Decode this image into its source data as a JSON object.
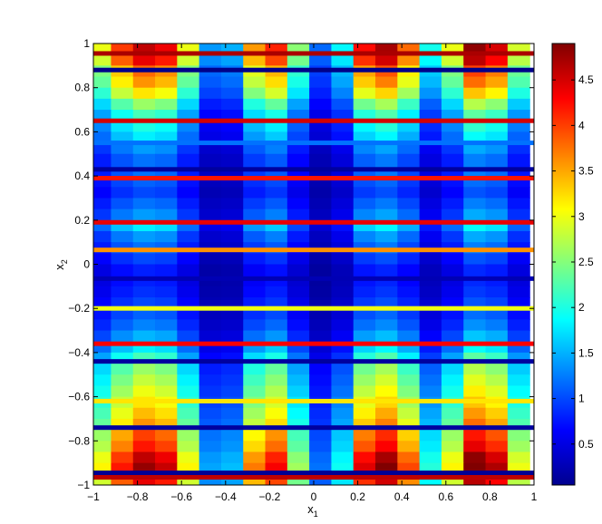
{
  "chart_data": {
    "type": "heatmap",
    "title": "",
    "xlabel": "x",
    "xlabel_sub": "1",
    "ylabel": "x",
    "ylabel_sub": "2",
    "xlim": [
      -1,
      1
    ],
    "ylim": [
      -1,
      1
    ],
    "x_ticks": [
      -1,
      -0.8,
      -0.6,
      -0.4,
      -0.2,
      0,
      0.2,
      0.4,
      0.6,
      0.8,
      1
    ],
    "x_tick_labels": [
      "−1",
      "−0.8",
      "−0.6",
      "−0.4",
      "−0.2",
      "0",
      "0.2",
      "0.4",
      "0.6",
      "0.8",
      "1"
    ],
    "y_ticks": [
      -1,
      -0.8,
      -0.6,
      -0.4,
      -0.2,
      0,
      0.2,
      0.4,
      0.6,
      0.8,
      1
    ],
    "y_tick_labels": [
      "−1",
      "−0.8",
      "−0.6",
      "−0.4",
      "−0.2",
      "0",
      "0.2",
      "0.4",
      "0.6",
      "0.8",
      "1"
    ],
    "colorbar": {
      "colormap": "jet",
      "range": [
        0.05,
        4.9
      ],
      "ticks": [
        0.5,
        1,
        1.5,
        2,
        2.5,
        3,
        3.5,
        4,
        4.5
      ],
      "tick_labels": [
        "0.5",
        "1",
        "1.5",
        "2",
        "2.5",
        "3",
        "3.5",
        "4",
        "4.5"
      ],
      "placement": "right"
    },
    "grid": false,
    "columns": {
      "x": [
        -0.97,
        -0.87,
        -0.77,
        -0.67,
        -0.57,
        -0.47,
        -0.37,
        -0.27,
        -0.17,
        -0.07,
        0.03,
        0.13,
        0.23,
        0.33,
        0.43,
        0.53,
        0.63,
        0.73,
        0.83,
        0.93
      ],
      "amplitude": [
        2.6,
        3.5,
        4.0,
        3.8,
        2.6,
        1.2,
        1.3,
        3.1,
        3.6,
        2.2,
        1.0,
        1.6,
        3.7,
        4.1,
        3.3,
        1.7,
        2.6,
        4.2,
        3.9,
        2.5
      ]
    },
    "rows": {
      "y": [
        0.975,
        0.925,
        0.875,
        0.825,
        0.775,
        0.725,
        0.675,
        0.625,
        0.575,
        0.525,
        0.475,
        0.425,
        0.375,
        0.325,
        0.275,
        0.225,
        0.175,
        0.125,
        0.075,
        0.025,
        -0.025,
        -0.075,
        -0.125,
        -0.175,
        -0.225,
        -0.275,
        -0.325,
        -0.375,
        -0.425,
        -0.475,
        -0.525,
        -0.575,
        -0.625,
        -0.675,
        -0.725,
        -0.775,
        -0.825,
        -0.875,
        -0.925,
        -0.975
      ],
      "amplitude": [
        1.15,
        1.1,
        0.95,
        0.9,
        0.8,
        0.65,
        0.55,
        0.5,
        0.45,
        0.35,
        0.3,
        0.3,
        0.28,
        0.25,
        0.3,
        0.35,
        0.45,
        0.35,
        0.3,
        0.25,
        0.2,
        0.2,
        0.22,
        0.25,
        0.28,
        0.32,
        0.38,
        0.45,
        0.55,
        0.65,
        0.7,
        0.75,
        0.8,
        0.85,
        0.9,
        1.0,
        1.05,
        1.15,
        1.2,
        1.1
      ]
    },
    "thin_bands": [
      {
        "y": 0.955,
        "value": 4.7
      },
      {
        "y": 0.88,
        "value": 0.1
      },
      {
        "y": 0.65,
        "value": 4.5
      },
      {
        "y": 0.55,
        "value": 1.2
      },
      {
        "y": 0.43,
        "value": 0.2
      },
      {
        "y": 0.39,
        "value": 4.2
      },
      {
        "y": 0.19,
        "value": 4.4
      },
      {
        "y": 0.065,
        "value": 3.6
      },
      {
        "y": -0.065,
        "value": 0.3
      },
      {
        "y": -0.2,
        "value": 3.0
      },
      {
        "y": -0.36,
        "value": 4.3
      },
      {
        "y": -0.44,
        "value": 0.2
      },
      {
        "y": -0.62,
        "value": 3.2
      },
      {
        "y": -0.74,
        "value": 0.2
      },
      {
        "y": -0.945,
        "value": 0.15
      },
      {
        "y": -0.965,
        "value": 4.6
      }
    ]
  }
}
